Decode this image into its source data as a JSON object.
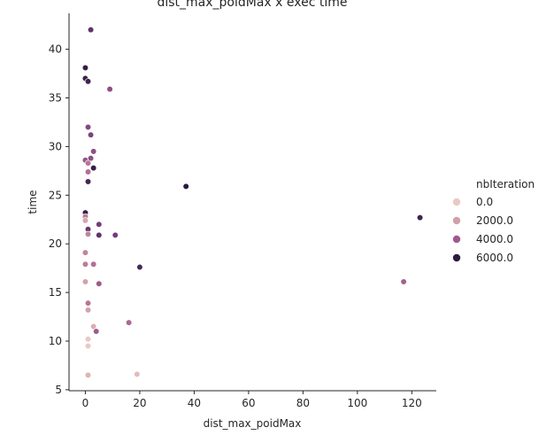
{
  "chart_data": {
    "type": "scatter",
    "title": "dist_max_poidMax x exec time",
    "xlabel": "dist_max_poidMax",
    "ylabel": "time",
    "xlim": [
      -6,
      129
    ],
    "ylim": [
      4.9,
      43.7
    ],
    "x_ticks": [
      0,
      20,
      40,
      60,
      80,
      100,
      120
    ],
    "y_ticks": [
      5,
      10,
      15,
      20,
      25,
      30,
      35,
      40
    ],
    "grid": false,
    "legend": {
      "title": "nbIteration",
      "placement": "right",
      "entries": [
        {
          "label": "0.0",
          "value": 0,
          "color": "#e8c9c4"
        },
        {
          "label": "2000.0",
          "value": 2000,
          "color": "#d1a0ab"
        },
        {
          "label": "4000.0",
          "value": 4000,
          "color": "#a05a8f"
        },
        {
          "label": "6000.0",
          "value": 6000,
          "color": "#2d1b3f"
        }
      ]
    },
    "hue_scale": {
      "min": 0,
      "max": 6000,
      "colors": [
        "#efd6cf",
        "#d6a5ab",
        "#b36e94",
        "#7a3f7d",
        "#2a1a3d"
      ]
    },
    "points": [
      {
        "x": 2,
        "y": 42.0,
        "hue": 5000
      },
      {
        "x": 0,
        "y": 38.1,
        "hue": 5800
      },
      {
        "x": 0,
        "y": 37.0,
        "hue": 5800
      },
      {
        "x": 1,
        "y": 36.7,
        "hue": 5600
      },
      {
        "x": 9,
        "y": 35.9,
        "hue": 4000
      },
      {
        "x": 1,
        "y": 32.0,
        "hue": 4200
      },
      {
        "x": 2,
        "y": 31.2,
        "hue": 4400
      },
      {
        "x": 3,
        "y": 29.5,
        "hue": 4000
      },
      {
        "x": 2,
        "y": 28.8,
        "hue": 4000
      },
      {
        "x": 0,
        "y": 28.6,
        "hue": 3800
      },
      {
        "x": 1,
        "y": 28.3,
        "hue": 2800
      },
      {
        "x": 3,
        "y": 27.8,
        "hue": 5800
      },
      {
        "x": 1,
        "y": 27.4,
        "hue": 3000
      },
      {
        "x": 1,
        "y": 26.4,
        "hue": 5500
      },
      {
        "x": 37,
        "y": 25.9,
        "hue": 6000
      },
      {
        "x": 0,
        "y": 23.2,
        "hue": 5800
      },
      {
        "x": 0,
        "y": 22.8,
        "hue": 2600
      },
      {
        "x": 0,
        "y": 22.4,
        "hue": 1500
      },
      {
        "x": 123,
        "y": 22.7,
        "hue": 5600
      },
      {
        "x": 5,
        "y": 22.0,
        "hue": 4600
      },
      {
        "x": 1,
        "y": 21.5,
        "hue": 4800
      },
      {
        "x": 1,
        "y": 21.0,
        "hue": 2400
      },
      {
        "x": 5,
        "y": 20.9,
        "hue": 5000
      },
      {
        "x": 11,
        "y": 20.9,
        "hue": 4600
      },
      {
        "x": 0,
        "y": 19.1,
        "hue": 2400
      },
      {
        "x": 0,
        "y": 17.9,
        "hue": 2600
      },
      {
        "x": 3,
        "y": 17.9,
        "hue": 3000
      },
      {
        "x": 20,
        "y": 17.6,
        "hue": 5400
      },
      {
        "x": 0,
        "y": 16.1,
        "hue": 1600
      },
      {
        "x": 5,
        "y": 15.9,
        "hue": 3600
      },
      {
        "x": 117,
        "y": 16.1,
        "hue": 3400
      },
      {
        "x": 1,
        "y": 13.9,
        "hue": 2800
      },
      {
        "x": 1,
        "y": 13.2,
        "hue": 1600
      },
      {
        "x": 16,
        "y": 11.9,
        "hue": 3200
      },
      {
        "x": 3,
        "y": 11.5,
        "hue": 1200
      },
      {
        "x": 4,
        "y": 11.0,
        "hue": 3600
      },
      {
        "x": 1,
        "y": 10.2,
        "hue": 400
      },
      {
        "x": 1,
        "y": 9.5,
        "hue": 400
      },
      {
        "x": 1,
        "y": 6.5,
        "hue": 1000
      },
      {
        "x": 19,
        "y": 6.6,
        "hue": 800
      }
    ]
  }
}
